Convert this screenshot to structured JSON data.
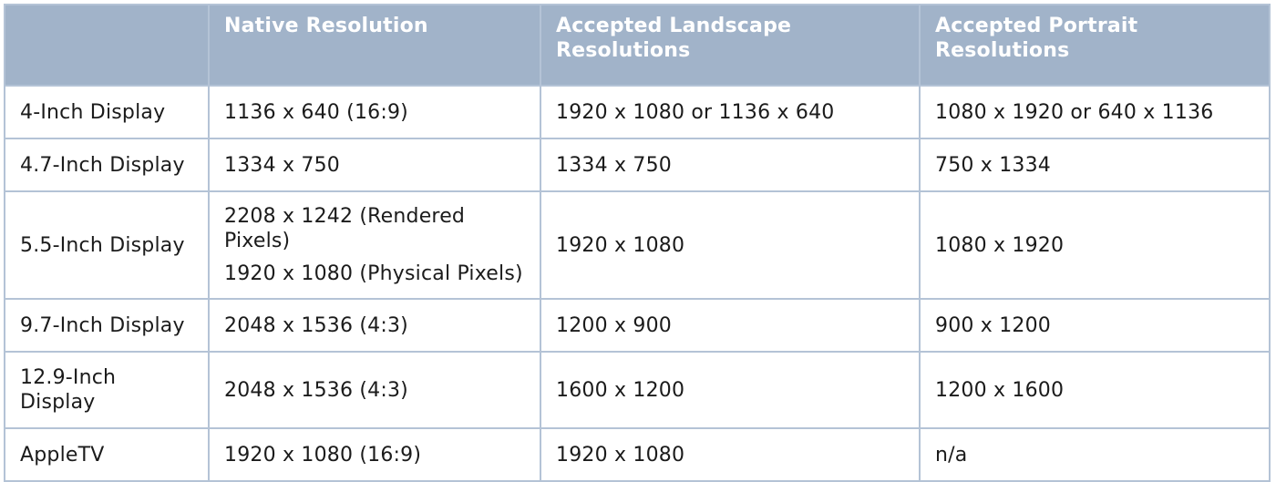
{
  "table": {
    "headers": [
      "",
      "Native Resolution",
      "Accepted Landscape Resolutions",
      "Accepted Portrait Resolutions"
    ],
    "rows": [
      {
        "display": "4-Inch Display",
        "native": [
          "1136 x 640 (16:9)"
        ],
        "landscape": "1920 x 1080 or 1136 x 640",
        "portrait": "1080 x 1920 or 640 x 1136"
      },
      {
        "display": "4.7-Inch Display",
        "native": [
          "1334 x 750"
        ],
        "landscape": "1334 x 750",
        "portrait": "750 x 1334"
      },
      {
        "display": "5.5-Inch Display",
        "native": [
          "2208 x 1242 (Rendered Pixels)",
          "1920 x 1080 (Physical Pixels)"
        ],
        "landscape": "1920 x 1080",
        "portrait": "1080 x 1920"
      },
      {
        "display": "9.7-Inch Display",
        "native": [
          "2048 x 1536 (4:3)"
        ],
        "landscape": "1200 x 900",
        "portrait": "900 x 1200"
      },
      {
        "display": "12.9-Inch Display",
        "native": [
          "2048 x 1536 (4:3)"
        ],
        "landscape": "1600 x 1200",
        "portrait": "1200 x 1600"
      },
      {
        "display": "AppleTV",
        "native": [
          "1920 x 1080 (16:9)"
        ],
        "landscape": "1920 x 1080",
        "portrait": "n/a"
      }
    ]
  },
  "colors": {
    "header_background": "#a1b3c9",
    "header_text": "#ffffff",
    "border": "#b4c3d6",
    "body_text": "#1b1b1b"
  }
}
